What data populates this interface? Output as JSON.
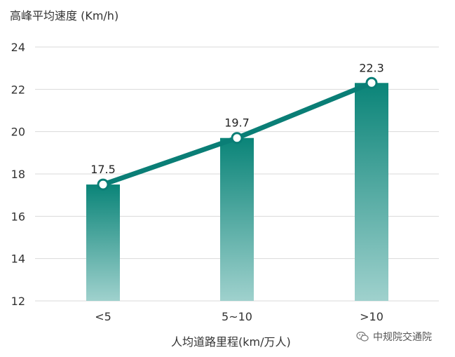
{
  "chart_data": {
    "type": "bar",
    "title": "",
    "ylabel": "高峰平均速度 (Km/h)",
    "xlabel": "人均道路里程(km/万人)",
    "categories": [
      "<5",
      "5~10",
      ">10"
    ],
    "values": [
      17.5,
      19.7,
      22.3
    ],
    "value_labels": [
      "17.5",
      "19.7",
      "22.3"
    ],
    "line_overlay": true,
    "ylim": [
      12,
      24
    ],
    "yticks": [
      "12",
      "14",
      "16",
      "18",
      "20",
      "22",
      "24"
    ],
    "grid": true,
    "colors": {
      "bar_top": "#0a8478",
      "bar_bottom": "#9fd1cd",
      "line": "#0a7e76",
      "grid": "#d9d9d9"
    }
  },
  "watermark": {
    "text": "中规院交通院",
    "icon": "wechat-icon"
  }
}
